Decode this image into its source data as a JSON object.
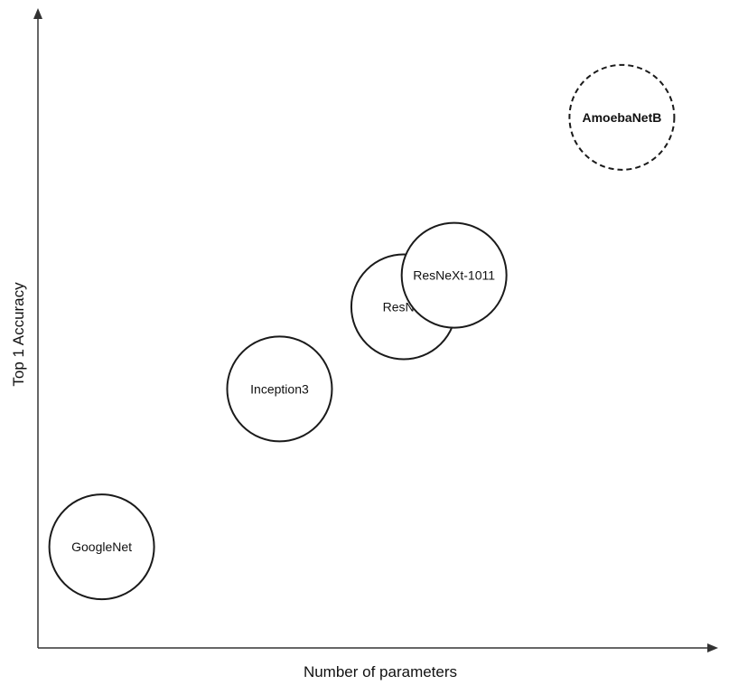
{
  "chart_data": {
    "type": "scatter",
    "xlabel": "Number of parameters",
    "ylabel": "Top 1 Accuracy",
    "xlim": [
      0,
      100
    ],
    "ylim": [
      0,
      100
    ],
    "grid": false,
    "legend": "none",
    "points": [
      {
        "label": "GoogleNet",
        "x": 9.5,
        "y": 16,
        "style": "solid"
      },
      {
        "label": "Inception3",
        "x": 36,
        "y": 41,
        "style": "solid"
      },
      {
        "label": "ResNet",
        "x": 54.5,
        "y": 54,
        "style": "solid"
      },
      {
        "label": "ResNeXt-1011",
        "x": 62,
        "y": 59,
        "style": "solid"
      },
      {
        "label": "AmoebaNetB",
        "x": 87,
        "y": 84,
        "style": "dashed"
      }
    ],
    "colors": {
      "axis": "#333333",
      "outline": "#1a1a1a",
      "fill": "#ffffff"
    }
  }
}
